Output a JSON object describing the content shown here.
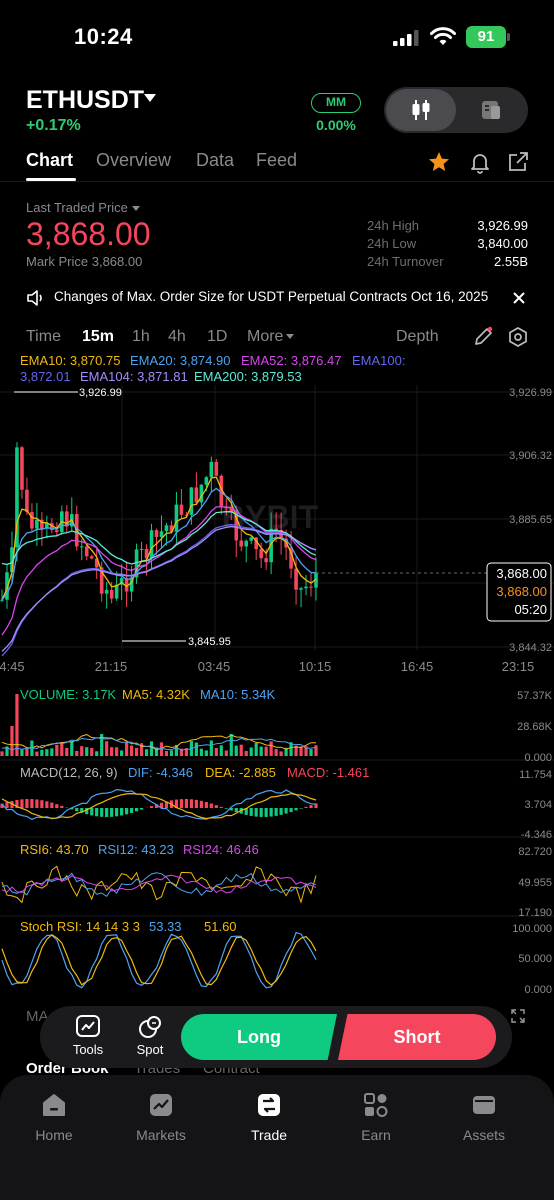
{
  "status_bar": {
    "time": "10:24",
    "battery": "91"
  },
  "header": {
    "symbol": "ETHUSDT",
    "change": "+0.17%",
    "mm_label": "MM",
    "mm_value": "0.00%"
  },
  "tabs": [
    {
      "label": "Chart",
      "active": true
    },
    {
      "label": "Overview"
    },
    {
      "label": "Data"
    },
    {
      "label": "Feed"
    }
  ],
  "price": {
    "last_traded_label": "Last Traded Price",
    "last_traded_value": "3,868.00",
    "mark_price": "Mark Price 3,868.00"
  },
  "stats": [
    {
      "label": "24h High",
      "value": "3,926.99"
    },
    {
      "label": "24h Low",
      "value": "3,840.00"
    },
    {
      "label": "24h Turnover",
      "value": "2.55B"
    }
  ],
  "notice": "Changes of Max. Order Size for USDT Perpetual Contracts Oct 16, 2025",
  "intervals": {
    "time": "Time",
    "m15": "15m",
    "h1": "1h",
    "h4": "4h",
    "d1": "1D",
    "more": "More",
    "depth": "Depth"
  },
  "ema_legend": {
    "ema10": "EMA10: 3,870.75",
    "ema20": "EMA20: 3,874.90",
    "ema52": "EMA52: 3,876.47",
    "ema100": "EMA100:",
    "ema100_val": "3,872.01",
    "ema104": "EMA104: 3,871.81",
    "ema200": "EMA200: 3,879.53"
  },
  "main_chart": {
    "y_ticks": [
      "3,926.99",
      "3,906.32",
      "3,885.65",
      "3,844.32"
    ],
    "x_ticks": [
      "4:45",
      "21:15",
      "03:45",
      "10:15",
      "16:45",
      "23:15"
    ],
    "high_marker": "3,926.99",
    "low_marker": "3,845.95",
    "current_price": "3,868.00",
    "mark_price": "3,868.00",
    "countdown": "05:20",
    "watermark": "BYBIT"
  },
  "volume": {
    "label": "VOLUME: 3.17K",
    "ma5": "MA5: 4.32K",
    "ma10": "MA10: 5.34K",
    "y_ticks": [
      "57.37K",
      "28.68K",
      "0.000"
    ]
  },
  "macd": {
    "label": "MACD(12, 26, 9)",
    "dif": "DIF: -4.346",
    "dea": "DEA: -2.885",
    "macd": "MACD: -1.461",
    "y_ticks": [
      "11.754",
      "3.704",
      "-4.346"
    ]
  },
  "rsi": {
    "rsi6": "RSI6: 43.70",
    "rsi12": "RSI12: 43.23",
    "rsi24": "RSI24: 46.46",
    "y_ticks": [
      "82.720",
      "49.955",
      "17.190"
    ]
  },
  "stoch": {
    "label": "Stoch RSI: 14 14 3 3",
    "k": "53.33",
    "d": "51.60",
    "y_ticks": [
      "100.000",
      "50.000",
      "0.000"
    ]
  },
  "actions": {
    "tools": "Tools",
    "spot": "Spot",
    "long": "Long",
    "short": "Short"
  },
  "behind_labels": {
    "ma": "MA",
    "order_book": "Order Book",
    "trades": "Trades",
    "contract": "Contract"
  },
  "nav": [
    {
      "label": "Home",
      "icon": "home-icon"
    },
    {
      "label": "Markets",
      "icon": "markets-icon"
    },
    {
      "label": "Trade",
      "icon": "trade-icon",
      "active": true
    },
    {
      "label": "Earn",
      "icon": "earn-icon"
    },
    {
      "label": "Assets",
      "icon": "assets-icon"
    }
  ],
  "colors": {
    "up": "#0ecb81",
    "down": "#f6465d",
    "ema10": "#f0b90b",
    "ema20": "#4ea3f2",
    "ema52": "#d946ef",
    "ema100": "#6366f1",
    "ema104": "#a78bfa",
    "ema200": "#5eead4"
  }
}
